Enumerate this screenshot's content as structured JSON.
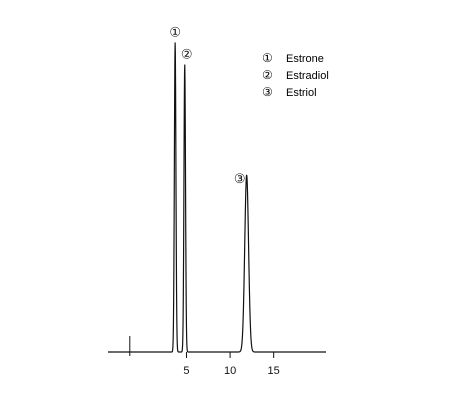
{
  "chart_data": {
    "type": "line",
    "title": "",
    "xlabel": "",
    "ylabel": "",
    "xlim": [
      -4,
      21
    ],
    "ylim": [
      0,
      100
    ],
    "grid": false,
    "x_ticks": [
      5,
      10,
      15
    ],
    "x_tick_labels": [
      "5",
      "10",
      "15"
    ],
    "injection_mark_x": -1.5,
    "peaks": [
      {
        "label": "①",
        "x": 3.7,
        "height": 98,
        "width": 0.09
      },
      {
        "label": "②",
        "x": 4.8,
        "height": 91,
        "width": 0.09
      },
      {
        "label": "③",
        "x": 11.9,
        "height": 56,
        "width": 0.22
      }
    ],
    "legend": {
      "placement": "top-right",
      "entries": [
        {
          "marker": "①",
          "label": "Estrone"
        },
        {
          "marker": "②",
          "label": "Estradiol"
        },
        {
          "marker": "③",
          "label": "Estriol"
        }
      ]
    },
    "line_color": "#111111"
  }
}
